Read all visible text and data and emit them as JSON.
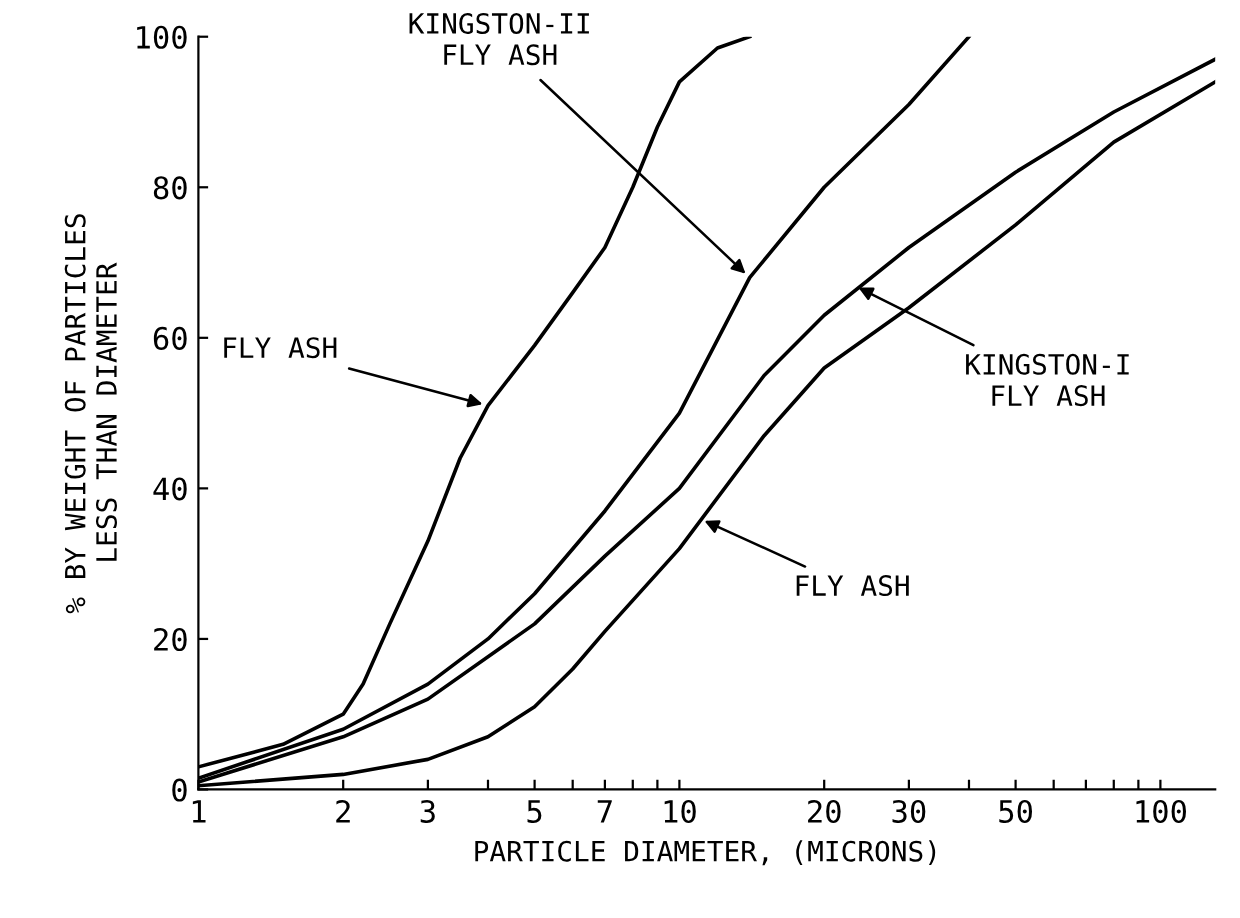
{
  "chart_data": {
    "type": "line",
    "xlabel": "PARTICLE DIAMETER, (MICRONS)",
    "ylabel": "% BY WEIGHT OF PARTICLES\nLESS THAN DIAMETER",
    "log": "x",
    "grid": false,
    "legend": false,
    "marker": "none",
    "line_style": "solid",
    "xlim": [
      1,
      130
    ],
    "ylim": [
      0,
      100
    ],
    "xticks": [
      1,
      2,
      3,
      {
        "value": 4,
        "label": null
      },
      5,
      {
        "value": 6,
        "label": null
      },
      7,
      {
        "value": 8,
        "label": null
      },
      {
        "value": 9,
        "label": null
      },
      10,
      20,
      30,
      {
        "value": 40,
        "label": null
      },
      50,
      {
        "value": 60,
        "label": null
      },
      {
        "value": 70,
        "label": null
      },
      {
        "value": 80,
        "label": null
      },
      {
        "value": 90,
        "label": null
      },
      100
    ],
    "yticks": [
      0,
      20,
      40,
      60,
      80,
      100
    ],
    "series": [
      {
        "color": "#000000",
        "x": [
          1,
          1.5,
          2,
          2.2,
          2.5,
          3,
          3.5,
          4,
          5,
          6,
          7,
          8,
          9,
          10,
          12,
          14
        ],
        "values": [
          3,
          6,
          10,
          14,
          22,
          33,
          44,
          51,
          59,
          66,
          72,
          80,
          88,
          94,
          98.5,
          100
        ]
      },
      {
        "color": "#000000",
        "x": [
          1,
          2,
          3,
          4,
          5,
          7,
          10,
          14,
          20,
          30,
          40
        ],
        "values": [
          1.5,
          8,
          14,
          20,
          26,
          37,
          50,
          68,
          80,
          91,
          100
        ]
      },
      {
        "color": "#000000",
        "x": [
          1,
          2,
          3,
          5,
          7,
          10,
          15,
          20,
          30,
          50,
          80,
          130
        ],
        "values": [
          1,
          7,
          12,
          22,
          31,
          40,
          55,
          63,
          72,
          82,
          90,
          97
        ]
      },
      {
        "color": "#000000",
        "x": [
          1,
          2,
          3,
          4,
          5,
          6,
          7,
          10,
          15,
          20,
          30,
          50,
          80,
          130
        ],
        "values": [
          0.5,
          2,
          4,
          7,
          11,
          16,
          21,
          32,
          47,
          56,
          64,
          75,
          86,
          94
        ]
      }
    ],
    "annotations": [
      {
        "text": "FLY ASH",
        "x": 4,
        "y": 51
      },
      {
        "text": "KINGSTON-II\nFLY ASH",
        "x": 14,
        "y": 68
      },
      {
        "text": "KINGSTON-I\nFLY ASH",
        "x": 23,
        "y": 67
      },
      {
        "text": "FLY ASH",
        "x": 11,
        "y": 36
      }
    ]
  }
}
